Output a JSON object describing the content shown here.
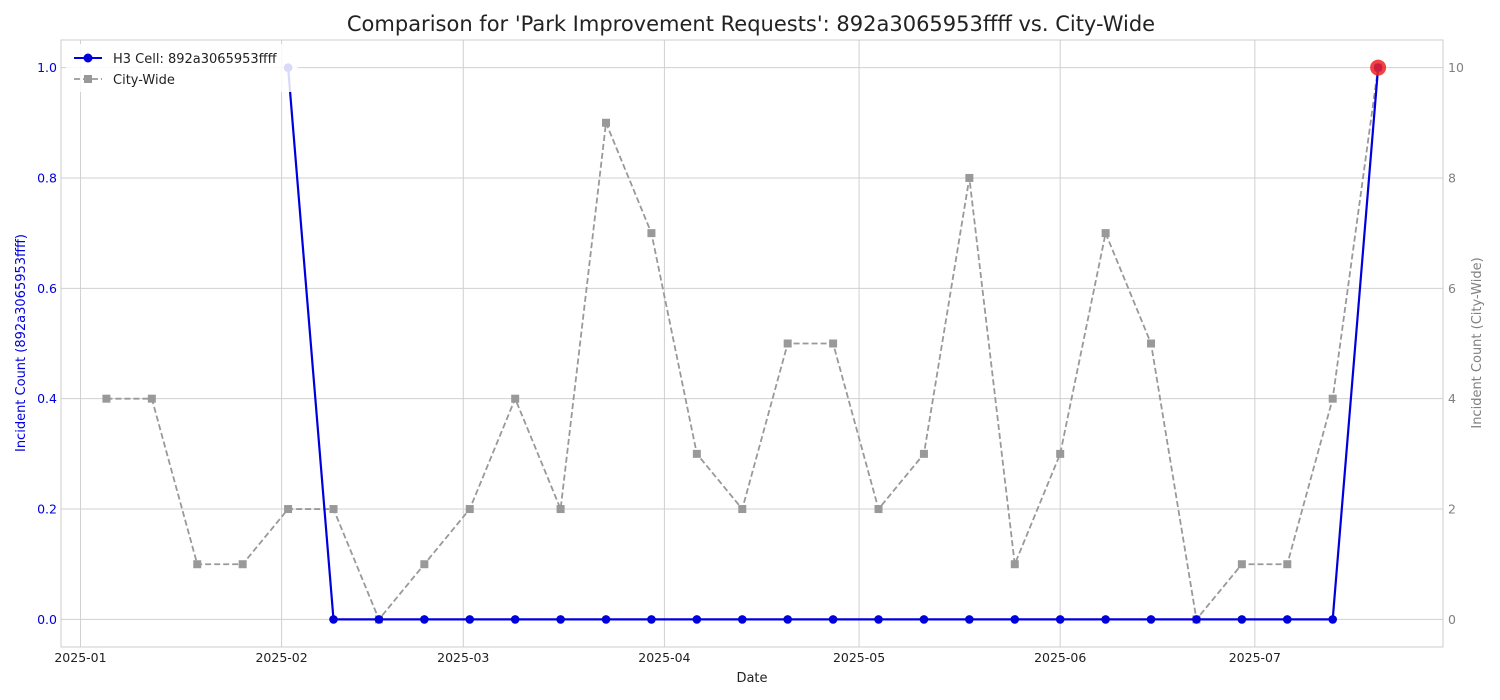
{
  "chart_data": {
    "type": "line",
    "title": "Comparison for 'Park Improvement Requests': 892a3065953ffff vs. City-Wide",
    "xlabel": "Date",
    "ylabel_left": "Incident Count (892a3065953ffff)",
    "ylabel_right": "Incident Count (City-Wide)",
    "x_ticks": [
      "2025-01",
      "2025-02",
      "2025-03",
      "2025-04",
      "2025-05",
      "2025-06",
      "2025-07"
    ],
    "y_ticks_left": [
      "0.0",
      "0.2",
      "0.4",
      "0.6",
      "0.8",
      "1.0"
    ],
    "y_ticks_right": [
      "0",
      "2",
      "4",
      "6",
      "8",
      "10"
    ],
    "xlim": [
      "2024-12-29",
      "2025-07-30"
    ],
    "ylim_left": [
      -0.05,
      1.05
    ],
    "ylim_right": [
      -0.5,
      10.5
    ],
    "grid": true,
    "legend_position": "top-left",
    "colors": {
      "h3": "#0000dd",
      "city": "#999999",
      "highlight": "#ee2222",
      "left_axis": "#0000dd",
      "right_axis": "#808080"
    },
    "series": [
      {
        "name": "H3 Cell: 892a3065953ffff",
        "axis": "left",
        "x": [
          "2025-02-02",
          "2025-02-09",
          "2025-02-16",
          "2025-02-23",
          "2025-03-02",
          "2025-03-09",
          "2025-03-16",
          "2025-03-23",
          "2025-03-30",
          "2025-04-06",
          "2025-04-13",
          "2025-04-20",
          "2025-04-27",
          "2025-05-04",
          "2025-05-11",
          "2025-05-18",
          "2025-05-25",
          "2025-06-01",
          "2025-06-08",
          "2025-06-15",
          "2025-06-22",
          "2025-06-29",
          "2025-07-06",
          "2025-07-13",
          "2025-07-20"
        ],
        "values": [
          1,
          0,
          0,
          0,
          0,
          0,
          0,
          0,
          0,
          0,
          0,
          0,
          0,
          0,
          0,
          0,
          0,
          0,
          0,
          0,
          0,
          0,
          0,
          0,
          1
        ]
      },
      {
        "name": "City-Wide",
        "axis": "right",
        "x": [
          "2025-01-05",
          "2025-01-12",
          "2025-01-19",
          "2025-01-26",
          "2025-02-02",
          "2025-02-09",
          "2025-02-16",
          "2025-02-23",
          "2025-03-02",
          "2025-03-09",
          "2025-03-16",
          "2025-03-23",
          "2025-03-30",
          "2025-04-06",
          "2025-04-13",
          "2025-04-20",
          "2025-04-27",
          "2025-05-04",
          "2025-05-11",
          "2025-05-18",
          "2025-05-25",
          "2025-06-01",
          "2025-06-08",
          "2025-06-15",
          "2025-06-22",
          "2025-06-29",
          "2025-07-06",
          "2025-07-13",
          "2025-07-20"
        ],
        "values": [
          4,
          4,
          1,
          1,
          2,
          2,
          0,
          1,
          2,
          4,
          2,
          9,
          7,
          3,
          2,
          5,
          5,
          2,
          3,
          8,
          1,
          3,
          7,
          5,
          0,
          1,
          1,
          4,
          10
        ]
      }
    ],
    "highlight_point": {
      "x": "2025-07-20",
      "value": 1
    }
  }
}
